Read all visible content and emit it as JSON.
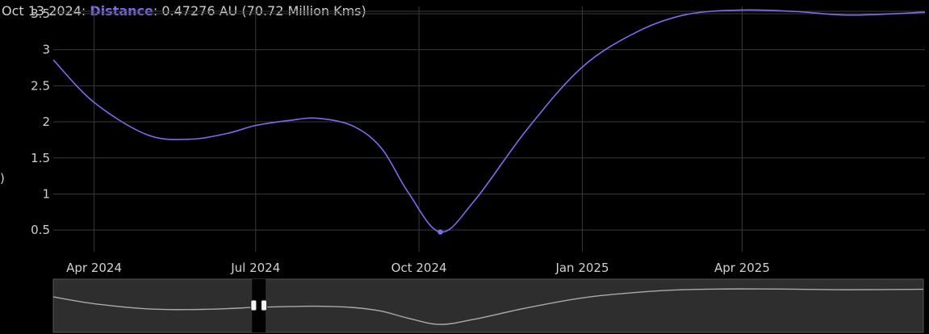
{
  "chart_data": {
    "type": "line",
    "legend": {
      "date": "Oct 13 2024",
      "sep": ": ",
      "series_name": "Distance",
      "value_text": ": 0.47276 AU (70.72 Million Kms)"
    },
    "ylabel": ")",
    "x_ticks": [
      "Apr 2024",
      "Jul 2024",
      "Oct 2024",
      "Jan 2025",
      "Apr 2025"
    ],
    "y_ticks": [
      0.5,
      1,
      1.5,
      2,
      2.5,
      3,
      3.5
    ],
    "ylim": [
      0.2,
      3.6
    ],
    "xlim": [
      "2024-03-09",
      "2025-07-13"
    ],
    "grid": true,
    "series": [
      {
        "name": "Distance",
        "color": "#7b6cf0",
        "points": [
          [
            "2024-03-09",
            2.86
          ],
          [
            "2024-04-01",
            2.27
          ],
          [
            "2024-05-01",
            1.82
          ],
          [
            "2024-05-25",
            1.76
          ],
          [
            "2024-06-15",
            1.84
          ],
          [
            "2024-07-01",
            1.95
          ],
          [
            "2024-07-20",
            2.02
          ],
          [
            "2024-08-05",
            2.05
          ],
          [
            "2024-08-25",
            1.94
          ],
          [
            "2024-09-10",
            1.63
          ],
          [
            "2024-09-25",
            1.02
          ],
          [
            "2024-10-13",
            0.47276
          ],
          [
            "2024-11-01",
            0.9
          ],
          [
            "2024-12-01",
            1.9
          ],
          [
            "2025-01-01",
            2.76
          ],
          [
            "2025-02-01",
            3.25
          ],
          [
            "2025-03-01",
            3.49
          ],
          [
            "2025-04-01",
            3.55
          ],
          [
            "2025-05-01",
            3.53
          ],
          [
            "2025-06-01",
            3.48
          ],
          [
            "2025-07-13",
            3.52
          ]
        ]
      }
    ],
    "highlight": {
      "x": "2024-10-13",
      "y": 0.47276
    },
    "navigator": {
      "window_start": "2024-07-01",
      "window_end": "2024-07-05"
    },
    "colors": {
      "background": "#000000",
      "grid": "#3a3a3a",
      "axis_text": "#d0d0d0",
      "line": "#7b6cf0",
      "navigator_bg": "#2e2e2e",
      "navigator_line": "#aaaaaa"
    }
  }
}
